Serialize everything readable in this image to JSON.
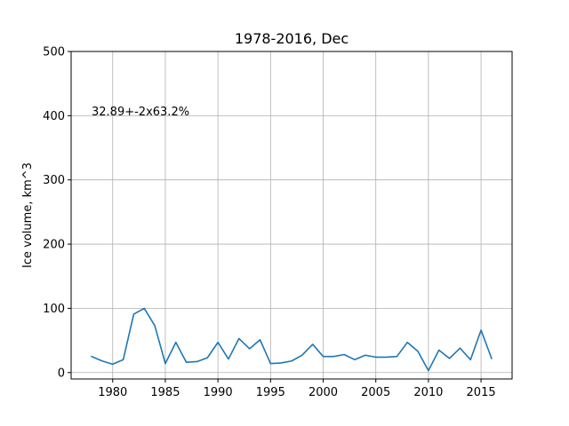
{
  "chart_data": {
    "type": "line",
    "title": "1978-2016, Dec",
    "xlabel": "",
    "ylabel": "Ice volume, km^3",
    "annotation": "32.89+-2x63.2%",
    "xlim": [
      1976.05,
      2017.95
    ],
    "ylim": [
      -10,
      500
    ],
    "grid": true,
    "x_ticks": [
      1980,
      1985,
      1990,
      1995,
      2000,
      2005,
      2010,
      2015
    ],
    "y_ticks": [
      0,
      100,
      200,
      300,
      400,
      500
    ],
    "line_color": "#1f77b4",
    "series": [
      {
        "x": [
          1978,
          1979,
          1980,
          1981,
          1982,
          1983,
          1984,
          1985,
          1986,
          1987,
          1988,
          1989,
          1990,
          1991,
          1992,
          1993,
          1994,
          1995,
          1996,
          1997,
          1998,
          1999,
          2000,
          2001,
          2002,
          2003,
          2004,
          2005,
          2006,
          2007,
          2008,
          2009,
          2010,
          2011,
          2012,
          2013,
          2014,
          2015,
          2016
        ],
        "values": [
          25,
          18,
          13,
          20,
          91,
          100,
          73,
          14,
          47,
          16,
          17,
          23,
          47,
          21,
          53,
          37,
          51,
          14,
          15,
          18,
          27,
          44,
          25,
          25,
          28,
          20,
          27,
          24,
          24,
          25,
          47,
          33,
          3,
          35,
          22,
          38,
          20,
          66,
          22
        ]
      }
    ]
  }
}
